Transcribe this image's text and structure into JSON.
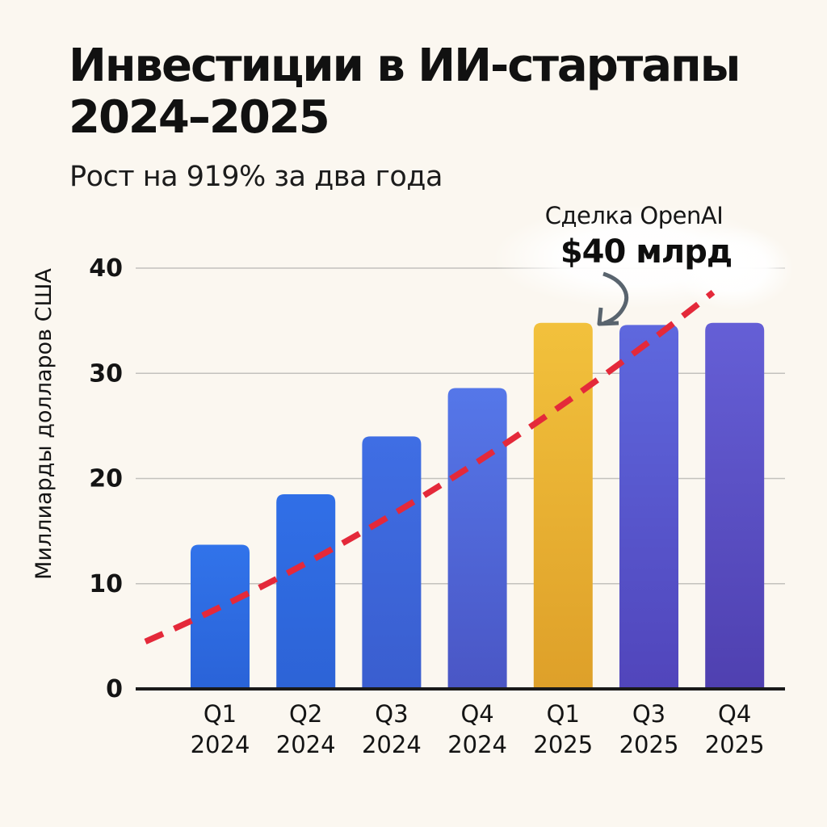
{
  "header": {
    "title_line1": "Инвестиции в ИИ-стартапы",
    "title_line2": "2024–2025",
    "subtitle": "Рост на 919% за два года"
  },
  "annotation": {
    "label": "Сделка OpenAI",
    "value": "$40 млрд"
  },
  "chart_data": {
    "type": "bar",
    "title": "Инвестиции в ИИ-стартапы 2024–2025",
    "subtitle": "Рост на 919% за два года",
    "xlabel": "",
    "ylabel": "Миллиарды долларов США",
    "ylim": [
      0,
      40
    ],
    "yticks": [
      0,
      10,
      20,
      30,
      40
    ],
    "grid": true,
    "legend": "none",
    "categories": [
      [
        "Q1",
        "2024"
      ],
      [
        "Q2",
        "2024"
      ],
      [
        "Q3",
        "2024"
      ],
      [
        "Q4",
        "2024"
      ],
      [
        "Q1",
        "2025"
      ],
      [
        "Q3",
        "2025"
      ],
      [
        "Q4",
        "2025"
      ]
    ],
    "values": [
      13.7,
      18.5,
      24,
      28.6,
      34.8,
      34.6,
      34.8
    ],
    "highlight_index": 4,
    "highlight_annotation": "Сделка OpenAI $40 млрд",
    "bar_colors": [
      {
        "top": "#3173ea",
        "bottom": "#2a63d8"
      },
      {
        "top": "#306fe7",
        "bottom": "#2d63d6"
      },
      {
        "top": "#3f6ee4",
        "bottom": "#3a5ecf"
      },
      {
        "top": "#5577e9",
        "bottom": "#4a56c5"
      },
      {
        "top": "#f2c13c",
        "bottom": "#dea029"
      },
      {
        "top": "#5e68de",
        "bottom": "#5145bb"
      },
      {
        "top": "#655fd6",
        "bottom": "#4f40b0"
      }
    ],
    "trend_line": {
      "style": "dashed",
      "color": "#e4293a",
      "start_value": 4.5,
      "end_value": 37.7
    }
  },
  "colors": {
    "background": "#fbf7f0",
    "grid": "#c3c1bd",
    "axis": "#1a1a1a",
    "text": "#141414",
    "arrow": "#59646e",
    "halo": "#ffffff"
  }
}
